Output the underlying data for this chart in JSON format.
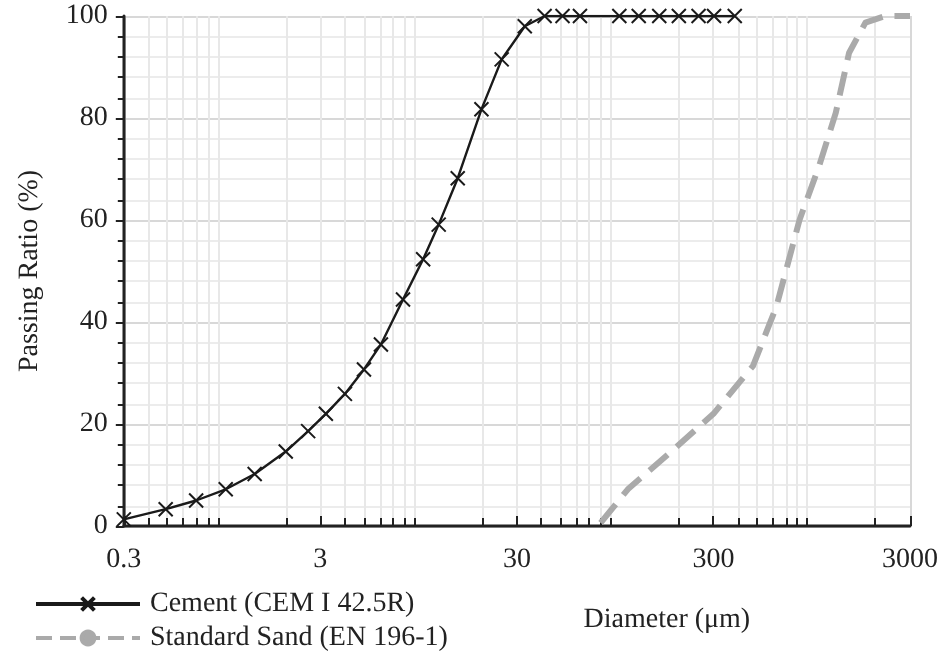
{
  "chart_data": {
    "type": "line",
    "xlabel": "Diameter (μm)",
    "ylabel": "Passing Ratio (%)",
    "log": "x",
    "xlim": [
      0.3,
      3000
    ],
    "xticks": [
      0.3,
      3,
      30,
      300,
      3000
    ],
    "ylim": [
      0,
      100
    ],
    "yticks": [
      0,
      20,
      40,
      60,
      80,
      100
    ],
    "grid": true,
    "legend": "bottom left",
    "series": [
      {
        "name": "Cement (CEM I 42.5R)",
        "color": "#1a1a1a",
        "marker": "cross",
        "line_style": "solid",
        "x": [
          0.3,
          0.49,
          0.7,
          0.99,
          1.39,
          2.0,
          2.6,
          3.2,
          4.0,
          5.0,
          6.1,
          7.9,
          10.0,
          12.0,
          15.0,
          19.8,
          25.1,
          32.9,
          41.5,
          51.2,
          62.8,
          99.6,
          125,
          159,
          200,
          252,
          302,
          385
        ],
        "values": [
          1.3,
          3.3,
          5.0,
          7.2,
          10.2,
          14.6,
          18.6,
          22.0,
          25.9,
          30.7,
          35.6,
          44.4,
          52.3,
          59.1,
          68.2,
          81.7,
          91.5,
          98.0,
          100,
          100,
          100,
          100,
          100,
          100,
          100,
          100,
          100,
          100
        ]
      },
      {
        "name": "Standard Sand (EN 196-1)",
        "color": "#aaaaaa",
        "marker": "none",
        "line_style": "dashed",
        "x": [
          80,
          110,
          188,
          300,
          477,
          627,
          822,
          1035,
          1257,
          1470,
          1780,
          2250,
          3000
        ],
        "values": [
          0.6,
          7.2,
          15,
          22,
          31.4,
          43,
          60,
          70.6,
          81,
          92.8,
          98.7,
          100,
          100
        ]
      }
    ]
  }
}
